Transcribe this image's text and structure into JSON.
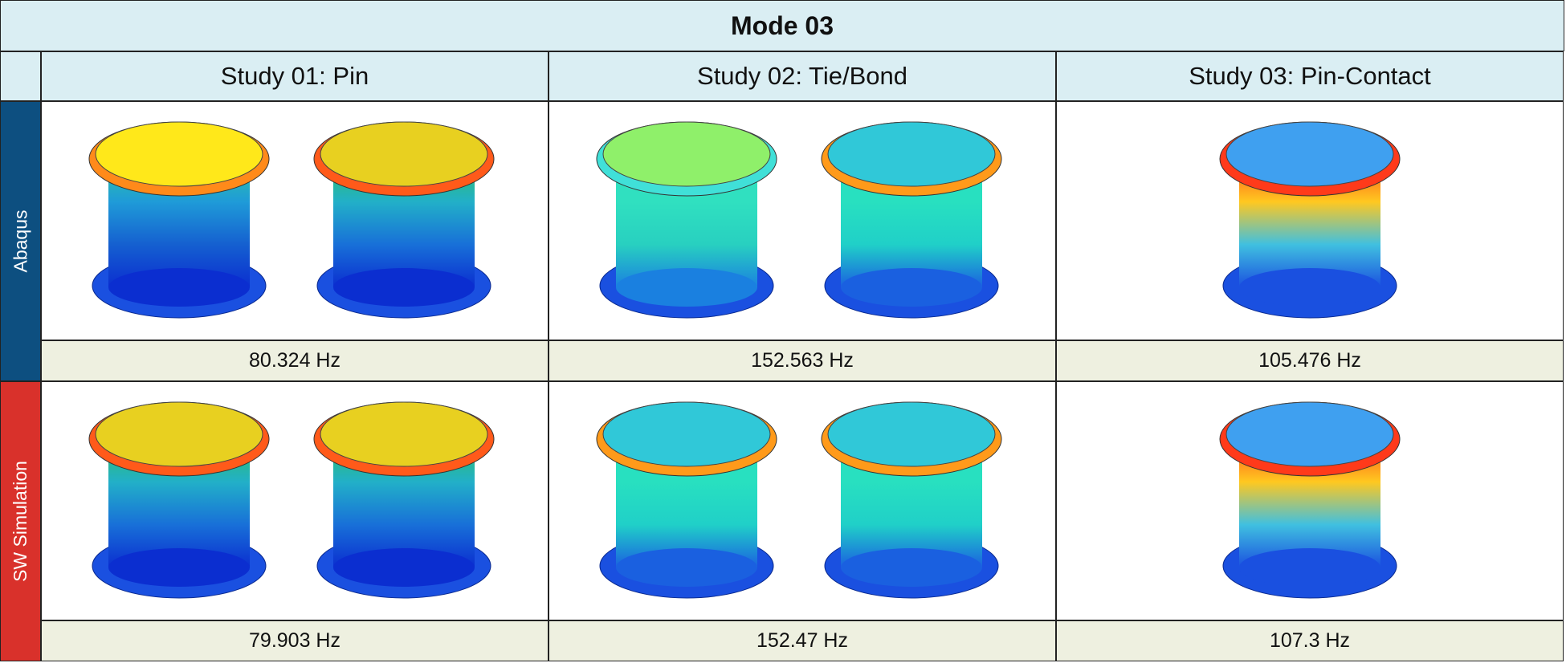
{
  "title": "Mode 03",
  "columns": [
    "Study 01: Pin",
    "Study 02: Tie/Bond",
    "Study 03: Pin-Contact"
  ],
  "rows": [
    {
      "label": "Abaqus",
      "frequencies": [
        "80.324 Hz",
        "152.563 Hz",
        "105.476 Hz"
      ]
    },
    {
      "label": "SW Simulation",
      "frequencies": [
        "79.903 Hz",
        "152.47 Hz",
        "107.3 Hz"
      ]
    }
  ]
}
